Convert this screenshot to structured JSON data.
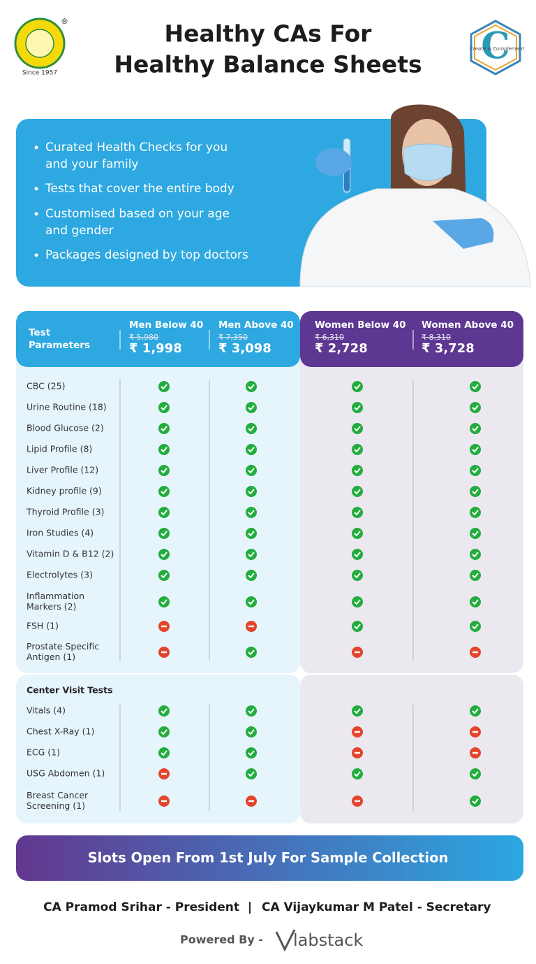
{
  "header": {
    "title_lines": [
      "Healthy CAs For",
      "Healthy Balance Sheets"
    ],
    "logo_left": {
      "mark": "®",
      "since": "Since 1957"
    },
    "logo_right": {
      "monogram": "C",
      "text": "Create & Complement"
    }
  },
  "features": [
    [
      "Curated Health Checks for you",
      "and your family"
    ],
    [
      "Tests that cover the entire body"
    ],
    [
      "Customised based on your age",
      "and gender"
    ],
    [
      "Packages designed by top doctors"
    ]
  ],
  "table": {
    "parameter_header": [
      "Test",
      "Parameters"
    ],
    "columns": [
      {
        "name": "Men Below 40",
        "original_price": "₹ 5,980",
        "price": "₹ 1,998"
      },
      {
        "name": "Men Above 40",
        "original_price": "₹ 7,350",
        "price": "₹ 3,098"
      },
      {
        "name": "Women Below 40",
        "original_price": "₹ 6,310",
        "price": "₹ 2,728"
      },
      {
        "name": "Women Above 40",
        "original_price": "₹ 8,310",
        "price": "₹ 3,728"
      }
    ],
    "sections": [
      {
        "rows": [
          {
            "label": [
              "CBC (25)"
            ],
            "included": [
              true,
              true,
              true,
              true
            ]
          },
          {
            "label": [
              "Urine Routine (18)"
            ],
            "included": [
              true,
              true,
              true,
              true
            ]
          },
          {
            "label": [
              "Blood Glucose (2)"
            ],
            "included": [
              true,
              true,
              true,
              true
            ]
          },
          {
            "label": [
              "Lipid Profile (8)"
            ],
            "included": [
              true,
              true,
              true,
              true
            ]
          },
          {
            "label": [
              "Liver Profile (12)"
            ],
            "included": [
              true,
              true,
              true,
              true
            ]
          },
          {
            "label": [
              "Kidney profile (9)"
            ],
            "included": [
              true,
              true,
              true,
              true
            ]
          },
          {
            "label": [
              "Thyroid Profile (3)"
            ],
            "included": [
              true,
              true,
              true,
              true
            ]
          },
          {
            "label": [
              "Iron Studies (4)"
            ],
            "included": [
              true,
              true,
              true,
              true
            ]
          },
          {
            "label": [
              "Vitamin D & B12 (2)"
            ],
            "included": [
              true,
              true,
              true,
              true
            ]
          },
          {
            "label": [
              "Electrolytes (3)"
            ],
            "included": [
              true,
              true,
              true,
              true
            ]
          },
          {
            "label": [
              "Inflammation",
              "Markers (2)"
            ],
            "included": [
              true,
              true,
              true,
              true
            ]
          },
          {
            "label": [
              "FSH (1)"
            ],
            "included": [
              false,
              false,
              true,
              true
            ]
          },
          {
            "label": [
              "Prostate Specific",
              "Antigen (1)"
            ],
            "included": [
              false,
              true,
              false,
              false
            ]
          }
        ]
      },
      {
        "heading": "Center Visit Tests",
        "rows": [
          {
            "label": [
              "Vitals (4)"
            ],
            "included": [
              true,
              true,
              true,
              true
            ]
          },
          {
            "label": [
              "Chest X-Ray (1)"
            ],
            "included": [
              true,
              true,
              false,
              false
            ]
          },
          {
            "label": [
              "ECG (1)"
            ],
            "included": [
              true,
              true,
              false,
              false
            ]
          },
          {
            "label": [
              "USG Abdomen (1)"
            ],
            "included": [
              false,
              true,
              true,
              true
            ]
          },
          {
            "label": [
              "Breast Cancer",
              "Screening (1)"
            ],
            "included": [
              false,
              false,
              false,
              true
            ]
          }
        ]
      }
    ]
  },
  "banner": "Slots Open From 1st July For Sample Collection",
  "footer": {
    "officers": [
      "CA Pramod Srihar - President",
      "CA Vijaykumar M Patel - Secretary"
    ],
    "separator": "|",
    "powered_by": "Powered By -",
    "brand": "labstack"
  }
}
